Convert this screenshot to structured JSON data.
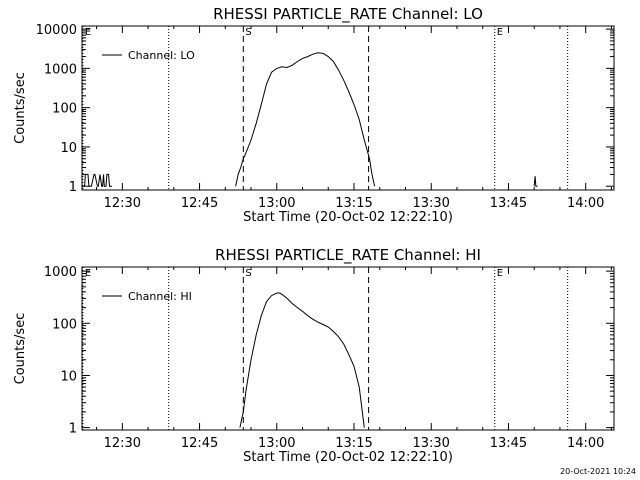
{
  "footer": {
    "timestamp": "20-Oct-2021 10:24"
  },
  "chart_data": [
    {
      "type": "line",
      "title": "RHESSI PARTICLE_RATE Channel: LO",
      "xlabel": "Start Time (20-Oct-02 12:22:10)",
      "ylabel": "Counts/sec",
      "scale_y": "log",
      "xlim": [
        "12:22:10",
        "14:05:30"
      ],
      "ylim": [
        0.8,
        12000
      ],
      "x_ticks": [
        "12:30",
        "12:45",
        "13:00",
        "13:15",
        "13:30",
        "13:45",
        "14:00"
      ],
      "y_ticks": [
        "1",
        "10",
        "100",
        "1000",
        "10000"
      ],
      "y_tick_values": [
        1,
        10,
        100,
        1000,
        10000
      ],
      "legend": {
        "position": "top-left",
        "entries": [
          "Channel: LO"
        ]
      },
      "markers": [
        {
          "label": "E",
          "time": "12:22:20",
          "style": "dotted"
        },
        {
          "label": "",
          "time": "12:39:00",
          "style": "dotted"
        },
        {
          "label": "S",
          "time": "12:53:30",
          "style": "dashed"
        },
        {
          "label": "",
          "time": "13:17:50",
          "style": "dashed"
        },
        {
          "label": "E",
          "time": "13:42:20",
          "style": "dotted"
        },
        {
          "label": "",
          "time": "13:56:30",
          "style": "dotted"
        }
      ],
      "series": [
        {
          "x": [
            "12:22:10",
            "12:22:40",
            "12:22:50",
            "12:23:20",
            "12:23:30",
            "12:24:00",
            "12:24:30",
            "12:24:40",
            "12:25:10",
            "12:25:20",
            "12:25:40",
            "12:26:00",
            "12:26:10",
            "12:26:20",
            "12:26:30",
            "12:26:50",
            "12:27:00",
            "12:27:20",
            "12:27:30",
            "12:28:00",
            "12:52:00",
            "12:52:30",
            "12:53:00",
            "12:53:30",
            "12:54:00",
            "12:55:00",
            "12:56:00",
            "12:57:00",
            "12:58:00",
            "12:59:00",
            "13:00:00",
            "13:01:00",
            "13:02:00",
            "13:03:00",
            "13:04:00",
            "13:05:00",
            "13:06:00",
            "13:07:00",
            "13:08:00",
            "13:09:00",
            "13:10:00",
            "13:11:00",
            "13:12:00",
            "13:13:00",
            "13:14:00",
            "13:15:00",
            "13:16:00",
            "13:17:00",
            "13:18:00",
            "13:18:30",
            "13:19:00",
            "13:50:00",
            "13:50:10",
            "13:50:20",
            "13:50:40"
          ],
          "y": [
            1,
            1,
            2,
            2,
            1,
            1,
            2,
            2,
            1,
            1,
            2,
            1,
            1,
            2,
            1,
            1,
            2,
            2,
            1,
            1,
            1,
            2,
            3,
            5,
            7,
            15,
            40,
            120,
            400,
            800,
            1000,
            1100,
            1050,
            1200,
            1500,
            1800,
            2000,
            2300,
            2500,
            2400,
            2000,
            1500,
            900,
            500,
            250,
            120,
            50,
            15,
            5,
            2,
            1,
            1,
            1.8,
            1,
            1
          ]
        }
      ]
    },
    {
      "type": "line",
      "title": "RHESSI PARTICLE_RATE Channel: HI",
      "xlabel": "Start Time (20-Oct-02 12:22:10)",
      "ylabel": "Counts/sec",
      "scale_y": "log",
      "xlim": [
        "12:22:10",
        "14:05:30"
      ],
      "ylim": [
        0.9,
        1200
      ],
      "x_ticks": [
        "12:30",
        "12:45",
        "13:00",
        "13:15",
        "13:30",
        "13:45",
        "14:00"
      ],
      "y_ticks": [
        "1",
        "10",
        "100",
        "1000"
      ],
      "y_tick_values": [
        1,
        10,
        100,
        1000
      ],
      "legend": {
        "position": "top-left",
        "entries": [
          "Channel: HI"
        ]
      },
      "markers": [
        {
          "label": "E",
          "time": "12:22:20",
          "style": "dotted"
        },
        {
          "label": "",
          "time": "12:39:00",
          "style": "dotted"
        },
        {
          "label": "S",
          "time": "12:53:30",
          "style": "dashed"
        },
        {
          "label": "",
          "time": "13:17:50",
          "style": "dashed"
        },
        {
          "label": "E",
          "time": "13:42:20",
          "style": "dotted"
        },
        {
          "label": "",
          "time": "13:56:30",
          "style": "dotted"
        }
      ],
      "series": [
        {
          "x": [
            "12:52:50",
            "12:53:30",
            "12:54:00",
            "12:55:00",
            "12:56:00",
            "12:57:00",
            "12:58:00",
            "12:59:00",
            "13:00:00",
            "13:00:30",
            "13:01:00",
            "13:02:00",
            "13:03:00",
            "13:04:00",
            "13:05:00",
            "13:06:00",
            "13:07:00",
            "13:08:00",
            "13:09:00",
            "13:10:00",
            "13:11:00",
            "13:12:00",
            "13:13:00",
            "13:14:00",
            "13:15:00",
            "13:16:00",
            "13:16:30",
            "13:17:00"
          ],
          "y": [
            1,
            2,
            5,
            20,
            60,
            140,
            260,
            340,
            380,
            380,
            360,
            300,
            240,
            200,
            170,
            140,
            120,
            105,
            95,
            85,
            70,
            55,
            40,
            25,
            15,
            6,
            2.5,
            1
          ]
        }
      ]
    }
  ]
}
